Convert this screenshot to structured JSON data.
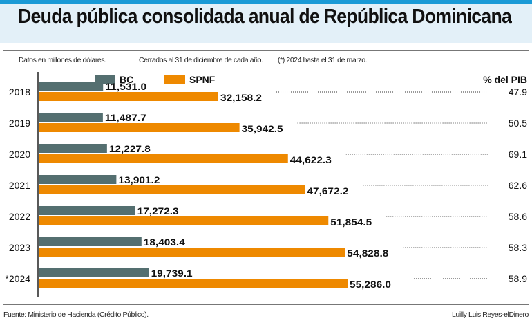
{
  "title": "Deuda pública consolidada anual de República Dominicana",
  "notes": [
    "Datos en millones de dólares.",
    "Cerrados al 31 de diciembre de cada año.",
    "(*) 2024 hasta el 31 de marzo."
  ],
  "source": "Fuente: Ministerio de Hacienda (Crédito Público).",
  "author": "Luilly Luis Reyes-elDinero",
  "colors": {
    "BC": "#546f70",
    "SPNF": "#ee8900",
    "top_bar": "#1a9ad6",
    "title_band": "#e3f0f8"
  },
  "chart_data": {
    "type": "bar",
    "orientation": "horizontal",
    "categories": [
      "2018",
      "2019",
      "2020",
      "2021",
      "2022",
      "2023",
      "*2024"
    ],
    "series": [
      {
        "name": "BC",
        "values": [
          11531.0,
          11487.7,
          12227.8,
          13901.2,
          17272.3,
          18403.4,
          19739.1
        ],
        "labels": [
          "11,531.0",
          "11,487.7",
          "12,227.8",
          "13,901.2",
          "17,272.3",
          "18,403.4",
          "19,739.1"
        ]
      },
      {
        "name": "SPNF",
        "values": [
          32158.2,
          35942.5,
          44622.3,
          47672.2,
          51854.5,
          54828.8,
          55286.0
        ],
        "labels": [
          "32,158.2",
          "35,942.5",
          "44,622.3",
          "47,672.2",
          "51,854.5",
          "54,828.8",
          "55,286.0"
        ]
      }
    ],
    "pib_header": "% del PIB",
    "pct_pib": [
      "47.9",
      "50.5",
      "69.1",
      "62.6",
      "58.6",
      "58.3",
      "58.9"
    ],
    "legend": "top",
    "grid": false
  }
}
